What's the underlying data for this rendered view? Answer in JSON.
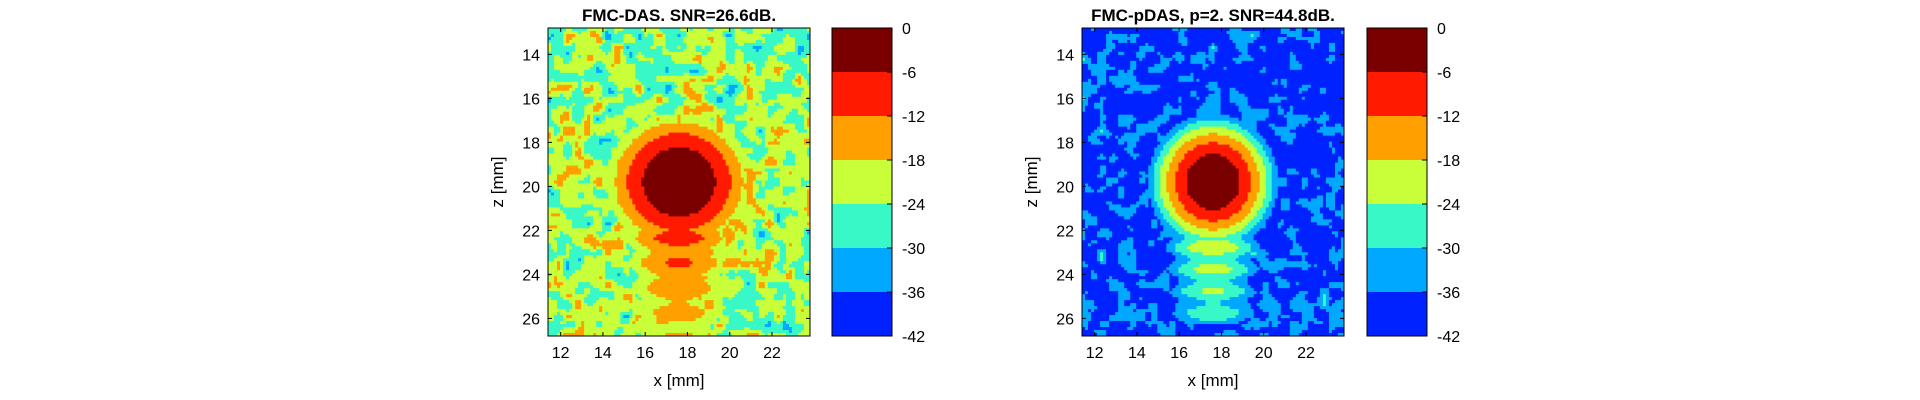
{
  "figure": {
    "background": "#ffffff",
    "colormap": [
      "#0022ff",
      "#00a8ff",
      "#38f8c8",
      "#c8ff38",
      "#ffa000",
      "#ff1a00",
      "#7a0000"
    ]
  },
  "chart_data": [
    {
      "type": "heatmap",
      "title": "FMC-DAS. SNR=26.6dB.",
      "xlabel": "x [mm]",
      "ylabel": "z [mm]",
      "xlim": [
        11.4,
        23.8
      ],
      "ylim": [
        12.8,
        26.8
      ],
      "y_reversed": true,
      "xticks": [
        12,
        14,
        16,
        18,
        20,
        22
      ],
      "yticks": [
        14,
        16,
        18,
        20,
        22,
        24,
        26
      ],
      "colorbar": {
        "ticks": [
          0,
          -6,
          -12,
          -18,
          -24,
          -30,
          -36,
          -42
        ],
        "levels_db": [
          -42,
          -36,
          -30,
          -24,
          -18,
          -12,
          -6,
          0
        ]
      },
      "snr_db": 26.6,
      "peak": {
        "x": 17.6,
        "z": 19.8,
        "value_db": 0
      },
      "background_level_db": -24,
      "description_levels": "speckle background mostly -24 to -18 dB with patches down to -42 dB; target region -12 to 0 dB"
    },
    {
      "type": "heatmap",
      "title": "FMC-pDAS, p=2. SNR=44.8dB.",
      "xlabel": "x [mm]",
      "ylabel": "z [mm]",
      "xlim": [
        11.4,
        23.8
      ],
      "ylim": [
        12.8,
        26.8
      ],
      "y_reversed": true,
      "xticks": [
        12,
        14,
        16,
        18,
        20,
        22
      ],
      "yticks": [
        14,
        16,
        18,
        20,
        22,
        24,
        26
      ],
      "colorbar": {
        "ticks": [
          0,
          -6,
          -12,
          -18,
          -24,
          -30,
          -36,
          -42
        ],
        "levels_db": [
          -42,
          -36,
          -30,
          -24,
          -18,
          -12,
          -6,
          0
        ]
      },
      "p": 2,
      "snr_db": 44.8,
      "peak": {
        "x": 17.6,
        "z": 19.8,
        "value_db": 0
      },
      "background_level_db": -42
    }
  ]
}
